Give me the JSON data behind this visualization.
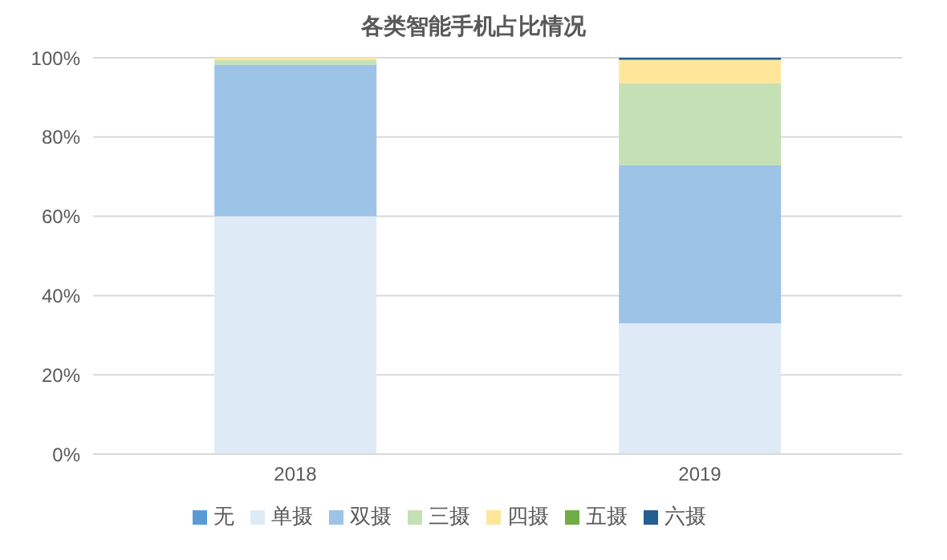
{
  "chart_data": {
    "type": "bar",
    "title": "各类智能手机占比情况",
    "categories": [
      "2018",
      "2019"
    ],
    "stacked": true,
    "series": [
      {
        "name": "无",
        "color": "#5b9bd5",
        "values": [
          0,
          0
        ]
      },
      {
        "name": "单摄",
        "color": "#deebf7",
        "values": [
          60,
          33
        ]
      },
      {
        "name": "双摄",
        "color": "#9dc3e6",
        "values": [
          38.3,
          39.9
        ]
      },
      {
        "name": "三摄",
        "color": "#c5e0b4",
        "values": [
          1.2,
          20.7
        ]
      },
      {
        "name": "四摄",
        "color": "#ffe699",
        "values": [
          0.5,
          5.9
        ]
      },
      {
        "name": "五摄",
        "color": "#70ad47",
        "values": [
          0,
          0
        ]
      },
      {
        "name": "六摄",
        "color": "#255e91",
        "values": [
          0,
          0.5
        ]
      }
    ],
    "ylim": [
      0,
      100
    ],
    "yticks": [
      {
        "value": 0,
        "label": "0%"
      },
      {
        "value": 20,
        "label": "20%"
      },
      {
        "value": 40,
        "label": "40%"
      },
      {
        "value": 60,
        "label": "60%"
      },
      {
        "value": 80,
        "label": "80%"
      },
      {
        "value": 100,
        "label": "100%"
      }
    ],
    "grid": "y",
    "legend": "bottom"
  }
}
